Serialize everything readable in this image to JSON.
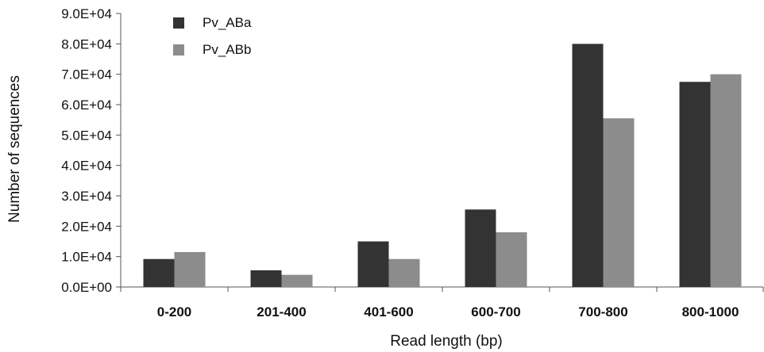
{
  "chart_data": {
    "type": "bar",
    "categories": [
      "0-200",
      "201-400",
      "401-600",
      "600-700",
      "700-800",
      "800-1000"
    ],
    "series": [
      {
        "name": "Pv_ABa",
        "color": "#333333",
        "values": [
          9200,
          5500,
          15000,
          25500,
          80000,
          67500
        ]
      },
      {
        "name": "Pv_ABb",
        "color": "#8c8c8c",
        "values": [
          11500,
          4000,
          9200,
          18000,
          55500,
          70000
        ]
      }
    ],
    "xlabel": "Read length (bp)",
    "ylabel": "Number of sequences",
    "ylim": [
      0,
      90000
    ],
    "yticks": [
      0,
      10000,
      20000,
      30000,
      40000,
      50000,
      60000,
      70000,
      80000,
      90000
    ],
    "ytick_labels": [
      "0.0E+00",
      "1.0E+04",
      "2.0E+04",
      "3.0E+04",
      "4.0E+04",
      "5.0E+04",
      "6.0E+04",
      "7.0E+04",
      "8.0E+04",
      "9.0E+04"
    ],
    "grid": false,
    "legend_position": "top-left"
  }
}
